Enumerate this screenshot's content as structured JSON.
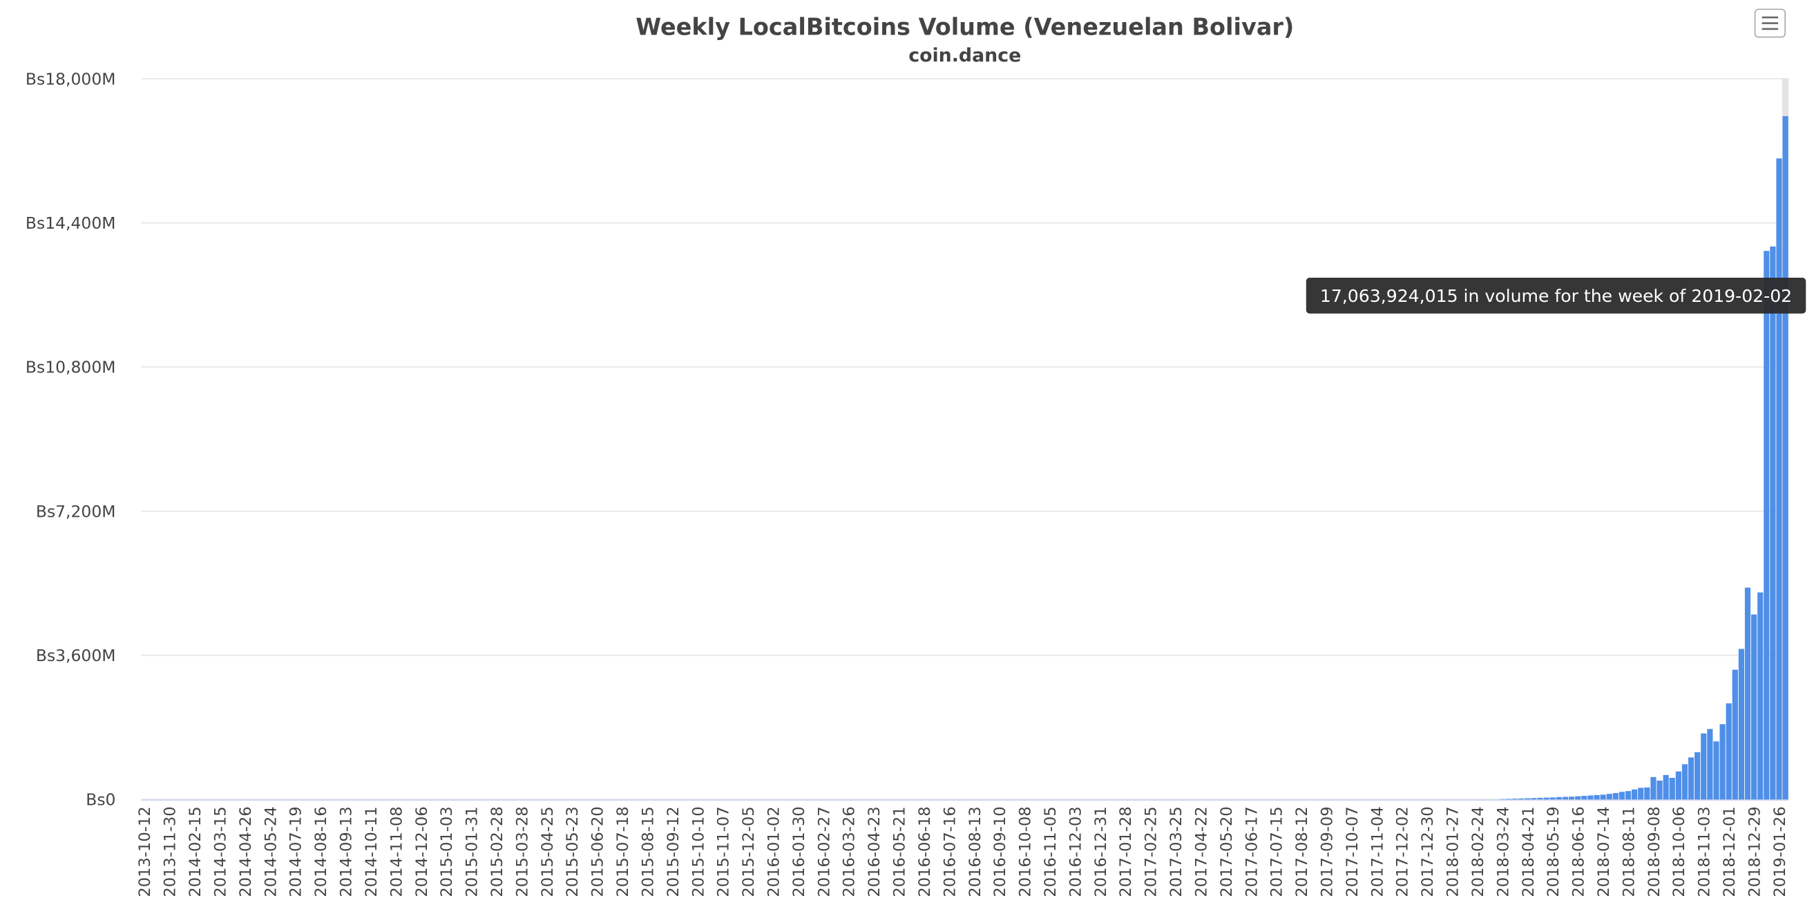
{
  "chart_data": {
    "type": "bar",
    "title": "Weekly LocalBitcoins Volume (Venezuelan Bolivar)",
    "subtitle": "coin.dance",
    "tooltip": "17,063,924,015 in volume for the week of 2019-02-02",
    "color": "#4f8fe8",
    "grid": true,
    "ylim": [
      0,
      18000
    ],
    "yticks": [
      {
        "value": 0,
        "label": "Bs0"
      },
      {
        "value": 3600,
        "label": "Bs3,600M"
      },
      {
        "value": 7200,
        "label": "Bs7,200M"
      },
      {
        "value": 10800,
        "label": "Bs10,800M"
      },
      {
        "value": 14400,
        "label": "Bs14,400M"
      },
      {
        "value": 18000,
        "label": "Bs18,000M"
      }
    ],
    "categories": [
      "2013-10-12",
      null,
      null,
      null,
      "2013-11-30",
      null,
      null,
      null,
      "2014-02-15",
      null,
      null,
      null,
      "2014-03-15",
      null,
      null,
      null,
      "2014-04-26",
      null,
      null,
      null,
      "2014-05-24",
      null,
      null,
      null,
      "2014-07-19",
      null,
      null,
      null,
      "2014-08-16",
      null,
      null,
      null,
      "2014-09-13",
      null,
      null,
      null,
      "2014-10-11",
      null,
      null,
      null,
      "2014-11-08",
      null,
      null,
      null,
      "2014-12-06",
      null,
      null,
      null,
      "2015-01-03",
      null,
      null,
      null,
      "2015-01-31",
      null,
      null,
      null,
      "2015-02-28",
      null,
      null,
      null,
      "2015-03-28",
      null,
      null,
      null,
      "2015-04-25",
      null,
      null,
      null,
      "2015-05-23",
      null,
      null,
      null,
      "2015-06-20",
      null,
      null,
      null,
      "2015-07-18",
      null,
      null,
      null,
      "2015-08-15",
      null,
      null,
      null,
      "2015-09-12",
      null,
      null,
      null,
      "2015-10-10",
      null,
      null,
      null,
      "2015-11-07",
      null,
      null,
      null,
      "2015-12-05",
      null,
      null,
      null,
      "2016-01-02",
      null,
      null,
      null,
      "2016-01-30",
      null,
      null,
      null,
      "2016-02-27",
      null,
      null,
      null,
      "2016-03-26",
      null,
      null,
      null,
      "2016-04-23",
      null,
      null,
      null,
      "2016-05-21",
      null,
      null,
      null,
      "2016-06-18",
      null,
      null,
      null,
      "2016-07-16",
      null,
      null,
      null,
      "2016-08-13",
      null,
      null,
      null,
      "2016-09-10",
      null,
      null,
      null,
      "2016-10-08",
      null,
      null,
      null,
      "2016-11-05",
      null,
      null,
      null,
      "2016-12-03",
      null,
      null,
      null,
      "2016-12-31",
      null,
      null,
      null,
      "2017-01-28",
      null,
      null,
      null,
      "2017-02-25",
      null,
      null,
      null,
      "2017-03-25",
      null,
      null,
      null,
      "2017-04-22",
      null,
      null,
      null,
      "2017-05-20",
      null,
      null,
      null,
      "2017-06-17",
      null,
      null,
      null,
      "2017-07-15",
      null,
      null,
      null,
      "2017-08-12",
      null,
      null,
      null,
      "2017-09-09",
      null,
      null,
      null,
      "2017-10-07",
      null,
      null,
      null,
      "2017-11-04",
      null,
      null,
      null,
      "2017-12-02",
      null,
      null,
      null,
      "2017-12-30",
      null,
      null,
      null,
      "2018-01-27",
      null,
      null,
      null,
      "2018-02-24",
      null,
      null,
      null,
      "2018-03-24",
      null,
      null,
      null,
      "2018-04-21",
      null,
      null,
      null,
      "2018-05-19",
      null,
      null,
      null,
      "2018-06-16",
      null,
      null,
      null,
      "2018-07-14",
      null,
      null,
      null,
      "2018-08-11",
      null,
      null,
      null,
      "2018-09-08",
      null,
      null,
      null,
      "2018-10-06",
      null,
      null,
      null,
      "2018-11-03",
      null,
      null,
      null,
      "2018-12-01",
      null,
      null,
      null,
      "2018-12-29",
      null,
      null,
      null,
      "2019-01-26",
      null
    ],
    "values": [
      0,
      0,
      0,
      0,
      0,
      0,
      0,
      0,
      0,
      0,
      0,
      0,
      0,
      0,
      0,
      0,
      0,
      0,
      0,
      0,
      0,
      0,
      0,
      0,
      0,
      0,
      0,
      0,
      0,
      0,
      0,
      0,
      0,
      0,
      0,
      0,
      0,
      0,
      0,
      0,
      0,
      0,
      0,
      0,
      0,
      0,
      0,
      0,
      0,
      0,
      0,
      0,
      0,
      0,
      0,
      0,
      0,
      0,
      0,
      0,
      0,
      0,
      0,
      0,
      0,
      0,
      0,
      0,
      0,
      0,
      0,
      0,
      0,
      0,
      0,
      0,
      0,
      0,
      0,
      0,
      0,
      0,
      0,
      0,
      0,
      0,
      0,
      0,
      0,
      0,
      0,
      0,
      0,
      0,
      0,
      0,
      0,
      0,
      0,
      0,
      0,
      0,
      0,
      0,
      0,
      0,
      0,
      0,
      0,
      0,
      0,
      0,
      0,
      0,
      0,
      0,
      0,
      0,
      0,
      0,
      0,
      0,
      0,
      0,
      0,
      0,
      0,
      0,
      0,
      0,
      0,
      0,
      0,
      0,
      0,
      0,
      0,
      0,
      0,
      0,
      0,
      0,
      0,
      0,
      0,
      0,
      0,
      0,
      0,
      0,
      0,
      0,
      0,
      0,
      0,
      0,
      0,
      0,
      0,
      0,
      0,
      0,
      0,
      0,
      0,
      0,
      0,
      0,
      0,
      0,
      0,
      0,
      0,
      0,
      0,
      0,
      0,
      0,
      0,
      0,
      0,
      0,
      0,
      0,
      0,
      0,
      0,
      0,
      0,
      0,
      0,
      0,
      0,
      0,
      0,
      0,
      0,
      0,
      0,
      0,
      0,
      0,
      0,
      0,
      0,
      0,
      0,
      0,
      0,
      0,
      0,
      0,
      0,
      0,
      0,
      0,
      10,
      15,
      20,
      25,
      30,
      35,
      40,
      45,
      50,
      60,
      65,
      70,
      80,
      90,
      100,
      110,
      120,
      140,
      160,
      190,
      210,
      250,
      290,
      300,
      560,
      470,
      610,
      540,
      700,
      880,
      1050,
      1180,
      1650,
      1760,
      1450,
      1880,
      2400,
      3240,
      3760,
      5290,
      4620,
      5170,
      13700,
      13810,
      16010,
      17063.924015
    ]
  }
}
